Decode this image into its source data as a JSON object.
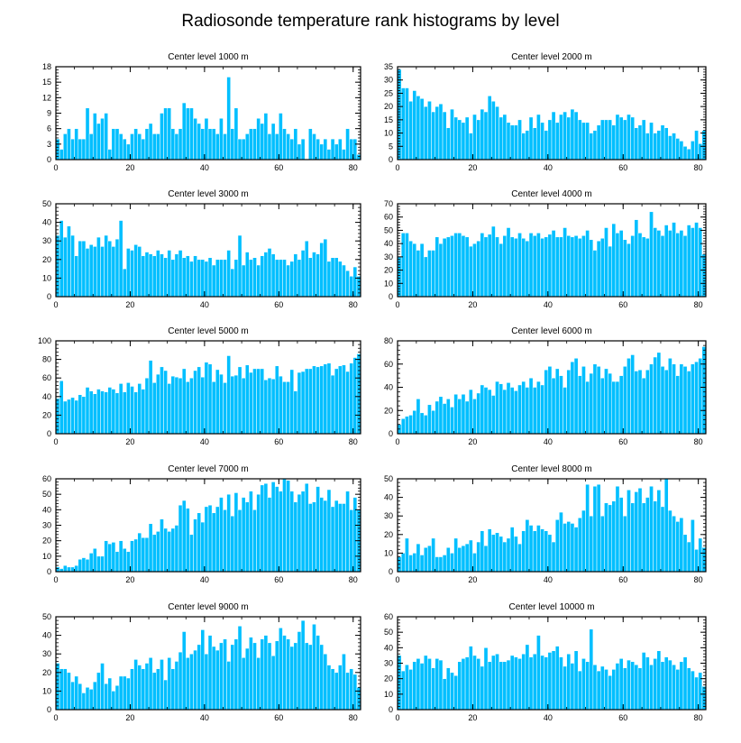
{
  "title": "Radiosonde temperature rank histograms by level",
  "colors": {
    "bar": "#00bfff",
    "bar_edge": "#ffffff",
    "frame": "#000000"
  },
  "chart_data": [
    {
      "type": "bar",
      "title": "Center level 1000 m",
      "xlim": [
        0,
        82
      ],
      "ylim": [
        0,
        18
      ],
      "xticks": [
        0,
        20,
        40,
        60,
        80
      ],
      "yticks": [
        0,
        3,
        6,
        9,
        12,
        15,
        18
      ],
      "values": [
        4,
        2,
        5,
        6,
        4,
        6,
        4,
        4,
        10,
        5,
        9,
        7,
        8,
        9,
        2,
        6,
        6,
        5,
        4,
        3,
        5,
        6,
        5,
        4,
        6,
        7,
        5,
        5,
        9,
        10,
        10,
        6,
        5,
        6,
        11,
        10,
        10,
        8,
        7,
        6,
        8,
        6,
        6,
        5,
        8,
        5,
        16,
        6,
        10,
        4,
        4,
        5,
        6,
        6,
        8,
        7,
        9,
        5,
        7,
        5,
        9,
        6,
        5,
        4,
        6,
        3,
        4,
        0,
        6,
        5,
        4,
        3,
        4,
        2,
        4,
        3,
        4,
        2,
        6,
        4,
        4,
        1
      ]
    },
    {
      "type": "bar",
      "title": "Center level 2000 m",
      "xlim": [
        0,
        82
      ],
      "ylim": [
        0,
        35
      ],
      "xticks": [
        0,
        20,
        40,
        60,
        80
      ],
      "yticks": [
        0,
        5,
        10,
        15,
        20,
        25,
        30,
        35
      ],
      "values": [
        34,
        27,
        27,
        22,
        26,
        24,
        23,
        20,
        22,
        18,
        20,
        21,
        18,
        12,
        19,
        16,
        15,
        14,
        16,
        10,
        17,
        15,
        19,
        18,
        24,
        22,
        20,
        16,
        17,
        14,
        13,
        13,
        15,
        10,
        11,
        16,
        12,
        17,
        14,
        11,
        15,
        18,
        14,
        17,
        18,
        16,
        19,
        18,
        15,
        14,
        14,
        10,
        11,
        13,
        15,
        15,
        15,
        13,
        17,
        16,
        15,
        17,
        16,
        12,
        13,
        15,
        10,
        14,
        10,
        11,
        13,
        12,
        9,
        10,
        8,
        7,
        5,
        4,
        7,
        11,
        6,
        11
      ]
    },
    {
      "type": "bar",
      "title": "Center level 3000 m",
      "xlim": [
        0,
        82
      ],
      "ylim": [
        0,
        50
      ],
      "xticks": [
        0,
        20,
        40,
        60,
        80
      ],
      "yticks": [
        0,
        10,
        20,
        30,
        40,
        50
      ],
      "values": [
        33,
        41,
        32,
        38,
        33,
        22,
        30,
        30,
        26,
        28,
        27,
        32,
        27,
        33,
        30,
        27,
        31,
        41,
        15,
        26,
        25,
        28,
        27,
        22,
        24,
        23,
        22,
        25,
        23,
        21,
        25,
        20,
        23,
        25,
        21,
        22,
        19,
        22,
        20,
        20,
        19,
        21,
        17,
        20,
        20,
        20,
        25,
        15,
        20,
        33,
        17,
        24,
        20,
        21,
        17,
        22,
        24,
        26,
        23,
        20,
        20,
        20,
        17,
        19,
        23,
        20,
        25,
        30,
        21,
        24,
        23,
        29,
        31,
        19,
        21,
        21,
        19,
        17,
        14,
        11,
        16,
        11
      ]
    },
    {
      "type": "bar",
      "title": "Center level 4000 m",
      "xlim": [
        0,
        82
      ],
      "ylim": [
        0,
        70
      ],
      "xticks": [
        0,
        20,
        40,
        60,
        80
      ],
      "yticks": [
        0,
        10,
        20,
        30,
        40,
        50,
        60,
        70
      ],
      "values": [
        30,
        48,
        48,
        42,
        40,
        35,
        40,
        30,
        35,
        35,
        45,
        40,
        44,
        45,
        46,
        48,
        48,
        46,
        45,
        38,
        40,
        42,
        48,
        45,
        47,
        53,
        45,
        40,
        46,
        52,
        45,
        44,
        48,
        44,
        42,
        48,
        46,
        48,
        44,
        45,
        47,
        50,
        45,
        45,
        52,
        46,
        45,
        46,
        44,
        46,
        50,
        43,
        35,
        42,
        44,
        52,
        38,
        55,
        48,
        50,
        43,
        40,
        46,
        58,
        48,
        45,
        44,
        64,
        52,
        50,
        46,
        54,
        50,
        56,
        48,
        50,
        46,
        54,
        52,
        56,
        52,
        32
      ]
    },
    {
      "type": "bar",
      "title": "Center level 5000 m",
      "xlim": [
        0,
        82
      ],
      "ylim": [
        0,
        100
      ],
      "xticks": [
        0,
        20,
        40,
        60,
        80
      ],
      "yticks": [
        0,
        20,
        40,
        60,
        80,
        100
      ],
      "values": [
        38,
        57,
        35,
        37,
        39,
        36,
        42,
        40,
        50,
        46,
        43,
        48,
        46,
        45,
        50,
        48,
        44,
        54,
        45,
        55,
        51,
        45,
        54,
        48,
        60,
        79,
        55,
        64,
        72,
        68,
        54,
        62,
        61,
        60,
        70,
        56,
        60,
        68,
        72,
        61,
        77,
        75,
        56,
        69,
        64,
        55,
        84,
        62,
        63,
        72,
        60,
        74,
        66,
        70,
        70,
        70,
        58,
        60,
        59,
        73,
        62,
        56,
        56,
        69,
        46,
        66,
        67,
        70,
        70,
        73,
        72,
        73,
        75,
        76,
        63,
        70,
        73,
        74,
        67,
        76,
        82,
        86
      ]
    },
    {
      "type": "bar",
      "title": "Center level 6000 m",
      "xlim": [
        0,
        82
      ],
      "ylim": [
        0,
        80
      ],
      "xticks": [
        0,
        20,
        40,
        60,
        80
      ],
      "yticks": [
        0,
        20,
        40,
        60,
        80
      ],
      "values": [
        8,
        13,
        15,
        16,
        20,
        30,
        18,
        16,
        25,
        20,
        28,
        32,
        26,
        30,
        23,
        34,
        30,
        34,
        28,
        38,
        30,
        35,
        42,
        40,
        38,
        33,
        45,
        43,
        38,
        44,
        40,
        37,
        42,
        45,
        40,
        48,
        40,
        45,
        42,
        55,
        58,
        48,
        56,
        50,
        40,
        55,
        62,
        65,
        50,
        58,
        45,
        52,
        60,
        58,
        48,
        56,
        52,
        45,
        45,
        50,
        58,
        65,
        68,
        54,
        55,
        48,
        55,
        60,
        66,
        70,
        58,
        55,
        65,
        60,
        50,
        60,
        58,
        54,
        60,
        62,
        65,
        75
      ]
    },
    {
      "type": "bar",
      "title": "Center level 7000 m",
      "xlim": [
        0,
        82
      ],
      "ylim": [
        0,
        60
      ],
      "xticks": [
        0,
        20,
        40,
        60,
        80
      ],
      "yticks": [
        0,
        10,
        20,
        30,
        40,
        50,
        60
      ],
      "values": [
        3,
        2,
        4,
        3,
        3,
        4,
        8,
        9,
        8,
        12,
        15,
        10,
        10,
        20,
        18,
        19,
        13,
        20,
        15,
        13,
        20,
        21,
        25,
        22,
        22,
        31,
        24,
        26,
        34,
        28,
        26,
        28,
        30,
        43,
        46,
        41,
        24,
        34,
        38,
        32,
        42,
        43,
        38,
        42,
        48,
        40,
        50,
        36,
        51,
        40,
        48,
        45,
        52,
        40,
        50,
        56,
        57,
        48,
        58,
        55,
        52,
        63,
        59,
        52,
        45,
        50,
        52,
        57,
        44,
        45,
        55,
        48,
        46,
        53,
        42,
        46,
        44,
        44,
        52,
        40,
        48,
        40
      ]
    },
    {
      "type": "bar",
      "title": "Center level 8000 m",
      "xlim": [
        0,
        82
      ],
      "ylim": [
        0,
        50
      ],
      "xticks": [
        0,
        20,
        40,
        60,
        80
      ],
      "yticks": [
        0,
        10,
        20,
        30,
        40,
        50
      ],
      "values": [
        8,
        10,
        18,
        9,
        10,
        15,
        9,
        13,
        14,
        18,
        8,
        8,
        9,
        13,
        10,
        18,
        13,
        14,
        15,
        17,
        10,
        16,
        22,
        14,
        23,
        20,
        21,
        19,
        16,
        18,
        24,
        19,
        15,
        22,
        28,
        25,
        22,
        25,
        23,
        22,
        20,
        16,
        28,
        32,
        26,
        27,
        26,
        24,
        29,
        33,
        47,
        30,
        46,
        47,
        30,
        37,
        36,
        38,
        46,
        40,
        30,
        44,
        37,
        43,
        45,
        37,
        40,
        46,
        38,
        44,
        35,
        50,
        33,
        30,
        27,
        29,
        20,
        16,
        28,
        12,
        18,
        13
      ]
    },
    {
      "type": "bar",
      "title": "Center level 9000 m",
      "xlim": [
        0,
        82
      ],
      "ylim": [
        0,
        50
      ],
      "xticks": [
        0,
        20,
        40,
        60,
        80
      ],
      "yticks": [
        0,
        10,
        20,
        30,
        40,
        50
      ],
      "values": [
        25,
        22,
        22,
        20,
        15,
        18,
        14,
        9,
        12,
        11,
        15,
        20,
        25,
        14,
        17,
        10,
        13,
        18,
        18,
        17,
        22,
        27,
        24,
        22,
        25,
        28,
        20,
        22,
        27,
        16,
        28,
        22,
        26,
        31,
        42,
        28,
        30,
        32,
        35,
        43,
        30,
        40,
        34,
        32,
        36,
        38,
        26,
        35,
        38,
        45,
        28,
        33,
        39,
        36,
        28,
        38,
        40,
        36,
        29,
        37,
        44,
        40,
        38,
        34,
        36,
        42,
        48,
        36,
        35,
        46,
        40,
        35,
        30,
        24,
        22,
        20,
        24,
        30,
        20,
        22,
        19,
        12
      ]
    },
    {
      "type": "bar",
      "title": "Center level 10000 m",
      "xlim": [
        0,
        82
      ],
      "ylim": [
        0,
        60
      ],
      "xticks": [
        0,
        20,
        40,
        60,
        80
      ],
      "yticks": [
        0,
        10,
        20,
        30,
        40,
        50,
        60
      ],
      "values": [
        35,
        25,
        29,
        26,
        31,
        33,
        30,
        35,
        33,
        27,
        33,
        32,
        20,
        27,
        24,
        22,
        31,
        33,
        34,
        41,
        35,
        33,
        28,
        40,
        31,
        35,
        36,
        31,
        31,
        32,
        35,
        34,
        33,
        36,
        42,
        34,
        36,
        48,
        35,
        34,
        37,
        38,
        41,
        34,
        28,
        36,
        30,
        38,
        25,
        33,
        31,
        52,
        29,
        25,
        28,
        26,
        22,
        26,
        30,
        33,
        27,
        32,
        31,
        29,
        27,
        37,
        34,
        29,
        33,
        38,
        31,
        34,
        32,
        29,
        26,
        31,
        34,
        27,
        25,
        21,
        24,
        15
      ]
    }
  ]
}
